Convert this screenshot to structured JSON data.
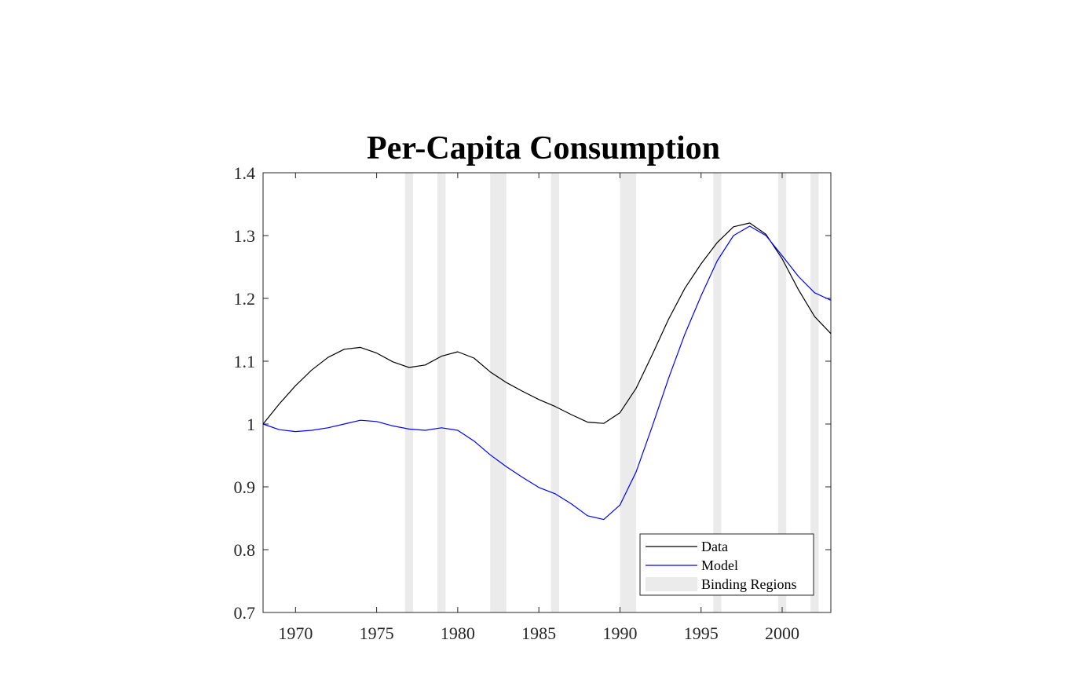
{
  "chart_data": {
    "type": "line",
    "title": "Per-Capita Consumption",
    "xlabel": "",
    "ylabel": "",
    "xlim": [
      1968,
      2003
    ],
    "ylim": [
      0.7,
      1.4
    ],
    "x_ticks": [
      1970,
      1975,
      1980,
      1985,
      1990,
      1995,
      2000
    ],
    "x_tick_labels": [
      "1970",
      "1975",
      "1980",
      "1985",
      "1990",
      "1995",
      "2000"
    ],
    "y_ticks": [
      0.7,
      0.8,
      0.9,
      1.0,
      1.1,
      1.2,
      1.3,
      1.4
    ],
    "y_tick_labels": [
      "0.7",
      "0.8",
      "0.9",
      "1",
      "1.1",
      "1.2",
      "1.3",
      "1.4"
    ],
    "grid": false,
    "legend_position": "bottom-right",
    "x": [
      1968,
      1969,
      1970,
      1971,
      1972,
      1973,
      1974,
      1975,
      1976,
      1977,
      1978,
      1979,
      1980,
      1981,
      1982,
      1983,
      1984,
      1985,
      1986,
      1987,
      1988,
      1989,
      1990,
      1991,
      1992,
      1993,
      1994,
      1995,
      1996,
      1997,
      1998,
      1999,
      2000,
      2001,
      2002,
      2003
    ],
    "series": [
      {
        "name": "Data",
        "color": "#000000",
        "values": [
          1.0,
          1.032,
          1.061,
          1.086,
          1.106,
          1.119,
          1.122,
          1.113,
          1.099,
          1.09,
          1.094,
          1.108,
          1.115,
          1.105,
          1.083,
          1.066,
          1.052,
          1.039,
          1.028,
          1.015,
          1.003,
          1.001,
          1.018,
          1.057,
          1.111,
          1.167,
          1.216,
          1.255,
          1.289,
          1.314,
          1.32,
          1.302,
          1.263,
          1.214,
          1.171,
          1.144
        ]
      },
      {
        "name": "Model",
        "color": "#0000ff",
        "values": [
          1.0,
          0.991,
          0.988,
          0.99,
          0.994,
          1.0,
          1.006,
          1.004,
          0.997,
          0.992,
          0.99,
          0.994,
          0.99,
          0.973,
          0.951,
          0.932,
          0.915,
          0.899,
          0.889,
          0.873,
          0.854,
          0.848,
          0.871,
          0.924,
          0.997,
          1.073,
          1.143,
          1.204,
          1.26,
          1.3,
          1.315,
          1.3,
          1.268,
          1.235,
          1.209,
          1.197
        ]
      }
    ],
    "shaded_regions": {
      "name": "Binding Regions",
      "color": "#ebebeb",
      "ranges": [
        [
          1976.75,
          1977.25
        ],
        [
          1978.75,
          1979.25
        ],
        [
          1982.0,
          1983.0
        ],
        [
          1985.75,
          1986.25
        ],
        [
          1990.0,
          1991.0
        ],
        [
          1995.75,
          1996.25
        ],
        [
          1999.75,
          2000.25
        ],
        [
          2001.75,
          2002.25
        ]
      ]
    },
    "legend": {
      "entries": [
        {
          "label": "Data",
          "kind": "line",
          "color": "#000000"
        },
        {
          "label": "Model",
          "kind": "line",
          "color": "#0000ff"
        },
        {
          "label": "Binding Regions",
          "kind": "patch",
          "color": "#ebebeb"
        }
      ]
    }
  }
}
